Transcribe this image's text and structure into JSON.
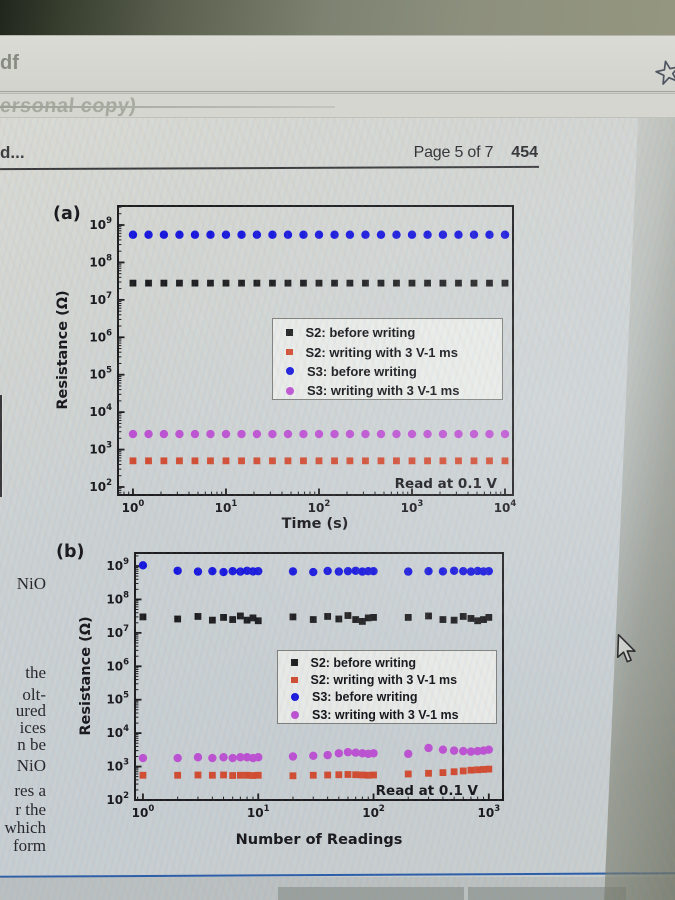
{
  "browser": {
    "tab_text_fragment": "df",
    "bookmark_icon": "star"
  },
  "watermark": {
    "text": "ersonal copy)"
  },
  "document_header": {
    "truncated_text": "d...",
    "page_info": "Page 5 of 7",
    "folio": "454"
  },
  "margin_text": {
    "items": [
      "NiO",
      "the",
      "olt-",
      "ured",
      "ices",
      "n be",
      "NiO",
      "res a",
      "r the",
      "which",
      "form"
    ]
  },
  "cursor": {
    "type": "arrow"
  },
  "colors": {
    "divider_blue": "#2a5ca8",
    "chart_frame": "#1b1b1d"
  },
  "chart_data": [
    {
      "id": "a",
      "type": "scatter",
      "panel_label": "(a)",
      "xlabel": "Time (s)",
      "ylabel": "Resistance (Ω)",
      "xscale": "log",
      "yscale": "log",
      "xlim_exponents": [
        0,
        4
      ],
      "ylim_exponents": [
        2,
        9
      ],
      "x_tick_exponents": [
        0,
        1,
        2,
        3,
        4
      ],
      "y_tick_exponents": [
        2,
        3,
        4,
        5,
        6,
        7,
        8,
        9
      ],
      "annotation": "Read at 0.1 V",
      "legend_position": "center-right",
      "grid": false,
      "series": [
        {
          "name": "S2: before writing",
          "marker": "square",
          "color": "#1c1c1e",
          "x": [
            1,
            1.47,
            2.15,
            3.16,
            4.64,
            6.81,
            10,
            14.7,
            21.5,
            31.6,
            46.4,
            68.1,
            100,
            147,
            215,
            316,
            464,
            681,
            1000,
            1470,
            2150,
            3160,
            4640,
            6810,
            10000
          ],
          "y_constant": 28000000
        },
        {
          "name": "S2: writing with 3 V-1 ms",
          "marker": "square",
          "color": "#d14b31",
          "x": [
            1,
            1.47,
            2.15,
            3.16,
            4.64,
            6.81,
            10,
            14.7,
            21.5,
            31.6,
            46.4,
            68.1,
            100,
            147,
            215,
            316,
            464,
            681,
            1000,
            1470,
            2150,
            3160,
            4640,
            6810,
            10000
          ],
          "y_constant": 500
        },
        {
          "name": "S3: before writing",
          "marker": "circle",
          "color": "#1616dd",
          "x": [
            1,
            1.47,
            2.15,
            3.16,
            4.64,
            6.81,
            10,
            14.7,
            21.5,
            31.6,
            46.4,
            68.1,
            100,
            147,
            215,
            316,
            464,
            681,
            1000,
            1470,
            2150,
            3160,
            4640,
            6810,
            10000
          ],
          "y_constant": 550000000
        },
        {
          "name": "S3: writing with 3 V-1 ms",
          "marker": "circle",
          "color": "#bc50d2",
          "x": [
            1,
            1.47,
            2.15,
            3.16,
            4.64,
            6.81,
            10,
            14.7,
            21.5,
            31.6,
            46.4,
            68.1,
            100,
            147,
            215,
            316,
            464,
            681,
            1000,
            1470,
            2150,
            3160,
            4640,
            6810,
            10000
          ],
          "y_constant": 2600
        }
      ]
    },
    {
      "id": "b",
      "type": "scatter",
      "panel_label": "(b)",
      "xlabel": "Number of Readings",
      "ylabel": "Resistance (Ω)",
      "xscale": "log",
      "yscale": "log",
      "xlim_exponents": [
        0,
        3
      ],
      "ylim_exponents": [
        2,
        9
      ],
      "x_tick_exponents": [
        0,
        1,
        2,
        3
      ],
      "y_tick_exponents": [
        2,
        3,
        4,
        5,
        6,
        7,
        8,
        9
      ],
      "annotation": "Read at 0.1 V",
      "legend_position": "center-right",
      "grid": false,
      "series": [
        {
          "name": "S2: before writing",
          "marker": "square",
          "color": "#1c1c1e",
          "x": [
            1,
            2,
            3,
            4,
            5,
            6,
            7,
            8,
            9,
            10,
            20,
            30,
            40,
            50,
            60,
            70,
            80,
            90,
            100,
            200,
            300,
            400,
            500,
            600,
            700,
            800,
            900,
            1000
          ],
          "y": [
            30000000,
            26000000,
            31000000,
            24000000,
            29000000,
            25000000,
            32000000,
            24000000,
            28000000,
            23000000,
            30000000,
            25000000,
            31000000,
            26000000,
            33000000,
            25000000,
            22000000,
            28000000,
            29000000,
            29000000,
            32000000,
            25000000,
            24000000,
            31000000,
            27000000,
            23000000,
            25000000,
            29000000
          ]
        },
        {
          "name": "S2: writing with 3 V-1 ms",
          "marker": "square",
          "color": "#d14b31",
          "x": [
            1,
            2,
            3,
            4,
            5,
            6,
            7,
            8,
            9,
            10,
            20,
            30,
            40,
            50,
            60,
            70,
            80,
            90,
            100,
            200,
            300,
            400,
            500,
            600,
            700,
            800,
            900,
            1000
          ],
          "y": [
            550,
            550,
            560,
            550,
            560,
            540,
            550,
            550,
            540,
            550,
            530,
            550,
            560,
            570,
            580,
            570,
            560,
            550,
            560,
            600,
            630,
            660,
            700,
            740,
            780,
            800,
            820,
            840
          ]
        },
        {
          "name": "S3: before writing",
          "marker": "circle",
          "color": "#1616dd",
          "x": [
            1,
            2,
            3,
            4,
            5,
            6,
            7,
            8,
            9,
            10,
            20,
            30,
            40,
            50,
            60,
            70,
            80,
            90,
            100,
            200,
            300,
            400,
            500,
            600,
            700,
            800,
            900,
            1000
          ],
          "y": [
            1050000000,
            720000000,
            680000000,
            700000000,
            660000000,
            700000000,
            680000000,
            720000000,
            690000000,
            700000000,
            690000000,
            660000000,
            710000000,
            680000000,
            700000000,
            720000000,
            680000000,
            700000000,
            700000000,
            680000000,
            700000000,
            690000000,
            720000000,
            700000000,
            680000000,
            710000000,
            690000000,
            700000000
          ]
        },
        {
          "name": "S3: writing with 3 V-1 ms",
          "marker": "circle",
          "color": "#bc50d2",
          "x": [
            1,
            2,
            3,
            4,
            5,
            6,
            7,
            8,
            9,
            10,
            20,
            30,
            40,
            50,
            60,
            70,
            80,
            90,
            100,
            200,
            300,
            400,
            500,
            600,
            700,
            800,
            900,
            1000
          ],
          "y": [
            1800,
            1800,
            1900,
            1800,
            1900,
            1800,
            1900,
            1900,
            1800,
            1900,
            2000,
            2100,
            2200,
            2500,
            2700,
            2600,
            2500,
            2400,
            2500,
            2400,
            3600,
            3200,
            3000,
            2900,
            2800,
            2900,
            3000,
            3200
          ]
        }
      ]
    }
  ]
}
